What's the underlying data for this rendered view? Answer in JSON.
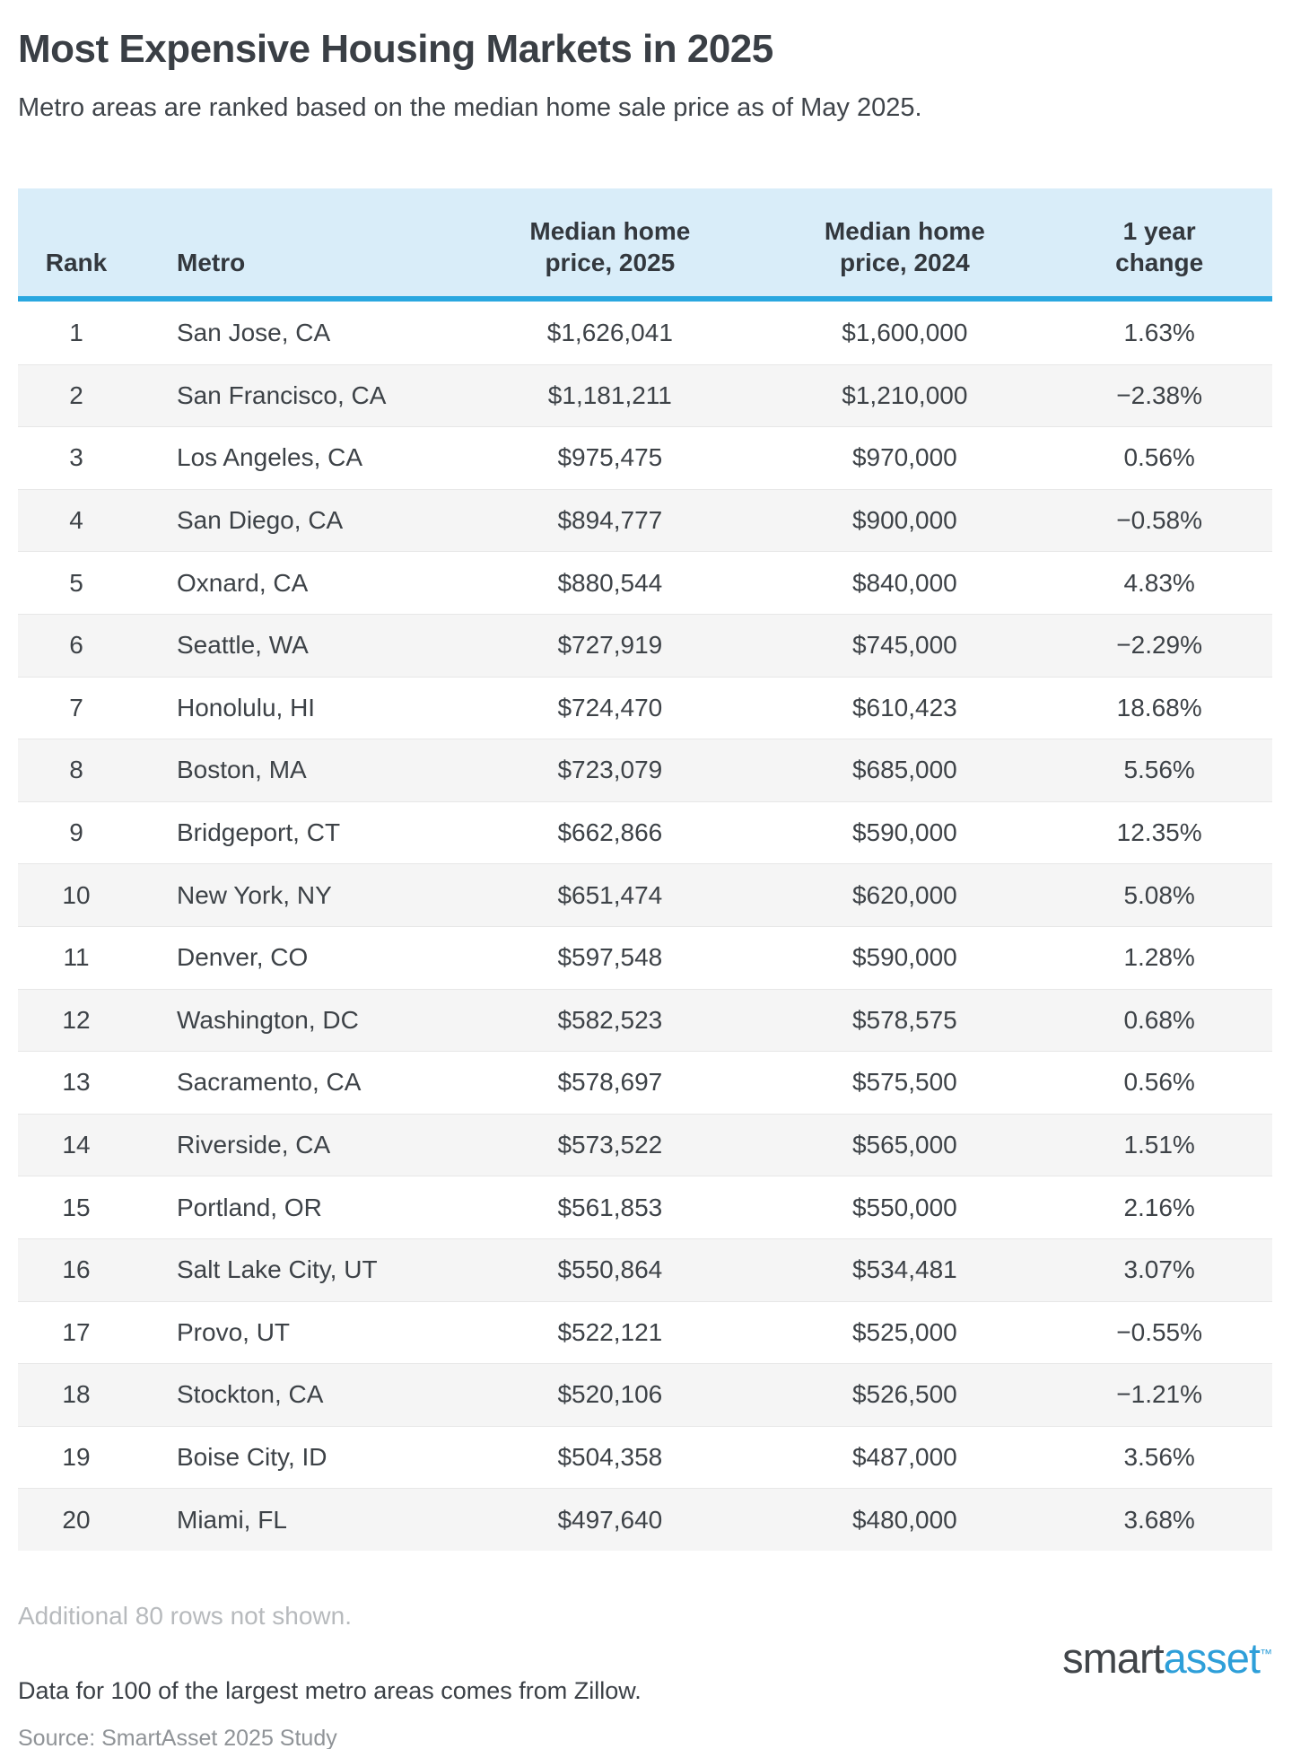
{
  "header": {
    "title": "Most Expensive Housing Markets in 2025",
    "subtitle": "Metro areas are ranked based on the median home sale price as of May 2025."
  },
  "chart_data": {
    "type": "table",
    "title": "Most Expensive Housing Markets in 2025",
    "columns": [
      "Rank",
      "Metro",
      "Median home price, 2025",
      "Median home price, 2024",
      "1 year change"
    ],
    "header_display": [
      "Rank",
      "Metro",
      "Median home\nprice, 2025",
      "Median home\nprice, 2024",
      "1 year\nchange"
    ],
    "rows": [
      [
        "1",
        "San Jose, CA",
        "$1,626,041",
        "$1,600,000",
        "1.63%"
      ],
      [
        "2",
        "San Francisco, CA",
        "$1,181,211",
        "$1,210,000",
        "−2.38%"
      ],
      [
        "3",
        "Los Angeles, CA",
        "$975,475",
        "$970,000",
        "0.56%"
      ],
      [
        "4",
        "San Diego, CA",
        "$894,777",
        "$900,000",
        "−0.58%"
      ],
      [
        "5",
        "Oxnard, CA",
        "$880,544",
        "$840,000",
        "4.83%"
      ],
      [
        "6",
        "Seattle, WA",
        "$727,919",
        "$745,000",
        "−2.29%"
      ],
      [
        "7",
        "Honolulu, HI",
        "$724,470",
        "$610,423",
        "18.68%"
      ],
      [
        "8",
        "Boston, MA",
        "$723,079",
        "$685,000",
        "5.56%"
      ],
      [
        "9",
        "Bridgeport, CT",
        "$662,866",
        "$590,000",
        "12.35%"
      ],
      [
        "10",
        "New York, NY",
        "$651,474",
        "$620,000",
        "5.08%"
      ],
      [
        "11",
        "Denver, CO",
        "$597,548",
        "$590,000",
        "1.28%"
      ],
      [
        "12",
        "Washington, DC",
        "$582,523",
        "$578,575",
        "0.68%"
      ],
      [
        "13",
        "Sacramento, CA",
        "$578,697",
        "$575,500",
        "0.56%"
      ],
      [
        "14",
        "Riverside, CA",
        "$573,522",
        "$565,000",
        "1.51%"
      ],
      [
        "15",
        "Portland, OR",
        "$561,853",
        "$550,000",
        "2.16%"
      ],
      [
        "16",
        "Salt Lake City, UT",
        "$550,864",
        "$534,481",
        "3.07%"
      ],
      [
        "17",
        "Provo, UT",
        "$522,121",
        "$525,000",
        "−0.55%"
      ],
      [
        "18",
        "Stockton, CA",
        "$520,106",
        "$526,500",
        "−1.21%"
      ],
      [
        "19",
        "Boise City, ID",
        "$504,358",
        "$487,000",
        "3.56%"
      ],
      [
        "20",
        "Miami, FL",
        "$497,640",
        "$480,000",
        "3.68%"
      ]
    ]
  },
  "footer": {
    "additional_note": "Additional 80 rows not shown.",
    "data_note": "Data for 100 of the largest metro areas comes from Zillow.",
    "source": "Source: SmartAsset 2025 Study"
  },
  "logo": {
    "part1": "smart",
    "part2": "asset",
    "tm": "™"
  },
  "colors": {
    "accent_blue": "#29a7e0",
    "header_bg": "#d9edf9",
    "alt_row_bg": "#f5f5f5",
    "logo_blue": "#2e9fd9",
    "text_dark": "#3d4247",
    "text_muted": "#b7babd",
    "text_source": "#8f9397"
  }
}
